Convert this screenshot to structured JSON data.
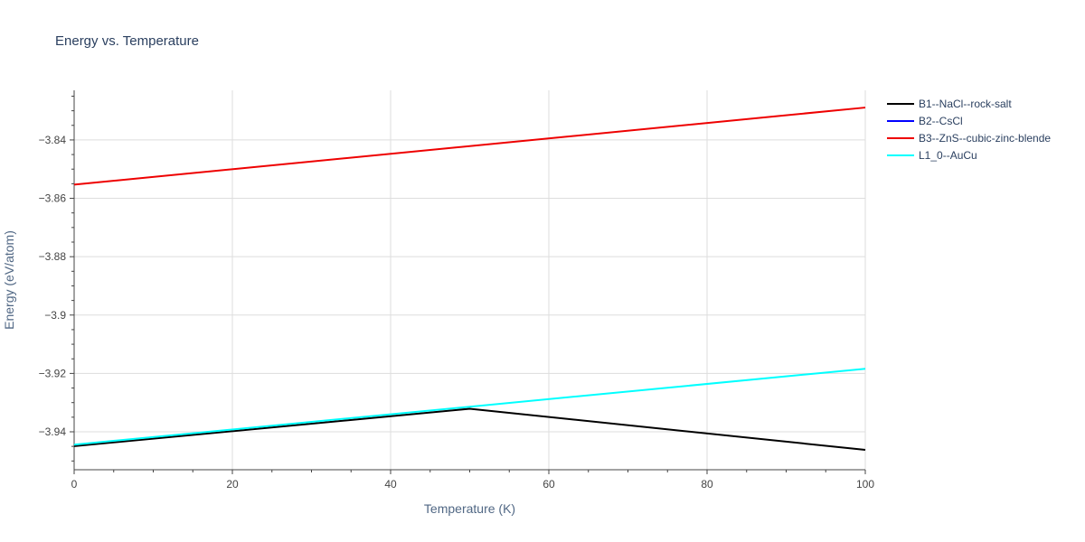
{
  "chart_data": {
    "type": "line",
    "title": "Energy vs. Temperature",
    "xlabel": "Temperature (K)",
    "ylabel": "Energy (eV/atom)",
    "xlim": [
      0,
      100
    ],
    "ylim": [
      -3.953,
      -3.823
    ],
    "x_ticks": [
      0,
      20,
      40,
      60,
      80,
      100
    ],
    "y_ticks": [
      -3.94,
      -3.92,
      -3.9,
      -3.88,
      -3.86,
      -3.84
    ],
    "y_tick_labels": [
      "−3.94",
      "−3.92",
      "−3.9",
      "−3.88",
      "−3.86",
      "−3.84"
    ],
    "grid": true,
    "legend_position": "right",
    "series": [
      {
        "name": "B1--NaCl--rock-salt",
        "color": "#000000",
        "x": [
          0,
          50,
          100
        ],
        "y": [
          -3.9449,
          -3.9321,
          -3.9462
        ]
      },
      {
        "name": "B2--CsCl",
        "color": "#0000ff",
        "x": [],
        "y": []
      },
      {
        "name": "B3--ZnS--cubic-zinc-blende",
        "color": "#ee0000",
        "x": [
          0,
          100
        ],
        "y": [
          -3.8553,
          -3.8289
        ]
      },
      {
        "name": "L1_0--AuCu",
        "color": "#00ffff",
        "x": [
          0,
          100
        ],
        "y": [
          -3.9444,
          -3.9184
        ]
      }
    ]
  }
}
